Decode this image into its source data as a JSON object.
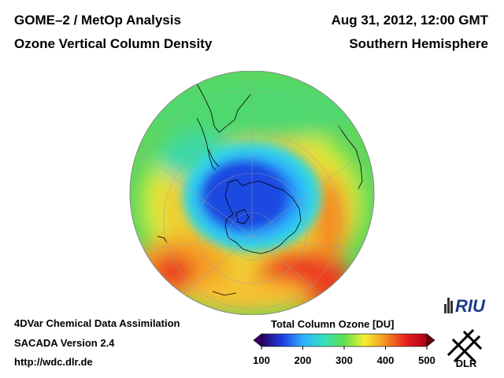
{
  "header": {
    "title_line1": "GOME–2 / MetOp Analysis",
    "title_line2": "Ozone Vertical Column Density",
    "date": "Aug 31, 2012, 12:00 GMT",
    "hemisphere": "Southern Hemisphere"
  },
  "footer": {
    "line1": "4DVar Chemical Data Assimilation",
    "line2": "SACADA Version 2.4",
    "line3": "http://wdc.dlr.de"
  },
  "colorbar": {
    "title": "Total Column Ozone [DU]",
    "ticks": [
      "100",
      "200",
      "300",
      "400",
      "500"
    ],
    "range": [
      100,
      500
    ],
    "stops": [
      {
        "value": 100,
        "color": "#2a0060"
      },
      {
        "value": 150,
        "color": "#1e3ce0"
      },
      {
        "value": 200,
        "color": "#2fb0ff"
      },
      {
        "value": 250,
        "color": "#34e0c0"
      },
      {
        "value": 300,
        "color": "#5ee050"
      },
      {
        "value": 350,
        "color": "#f4f032"
      },
      {
        "value": 400,
        "color": "#f59020"
      },
      {
        "value": 450,
        "color": "#e82020"
      },
      {
        "value": 500,
        "color": "#b00018"
      }
    ]
  },
  "logos": {
    "riu": "RIU",
    "dlr": "DLR"
  },
  "map": {
    "projection": "orthographic, south polar view",
    "graticule": true,
    "ozone_hole_center": "Antarctica"
  }
}
